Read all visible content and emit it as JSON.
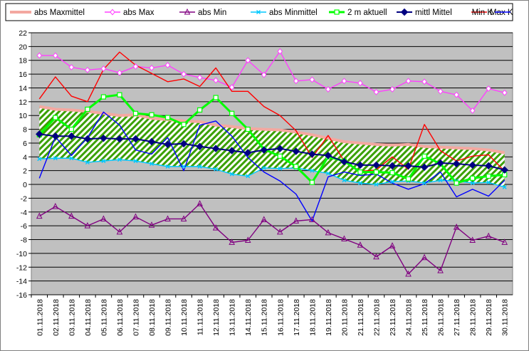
{
  "chart_data": {
    "type": "line",
    "categories": [
      "01.11.2018",
      "02.11.2018",
      "03.11.2018",
      "04.11.2018",
      "05.11.2018",
      "06.11.2018",
      "07.11.2018",
      "08.11.2018",
      "09.11.2018",
      "10.11.2018",
      "11.11.2018",
      "12.11.2018",
      "13.11.2018",
      "14.11.2018",
      "15.11.2018",
      "16.11.2018",
      "17.11.2018",
      "18.11.2018",
      "19.11.2018",
      "20.11.2018",
      "21.11.2018",
      "22.11.2018",
      "23.11.2018",
      "24.11.2018",
      "25.11.2018",
      "26.11.2018",
      "27.11.2018",
      "28.11.2018",
      "29.11.2018",
      "30.11.2018"
    ],
    "ylim": [
      -16,
      22
    ],
    "yticks": [
      22,
      20,
      18,
      16,
      14,
      12,
      10,
      8,
      6,
      4,
      2,
      0,
      -2,
      -4,
      -6,
      -8,
      -10,
      -12,
      -14,
      -16
    ],
    "grid": true,
    "legend_position": "top",
    "band": {
      "upper_series": "abs Maxmittel",
      "lower_series": "abs Minmittel",
      "pattern": "green-diagonal-hatch"
    },
    "series": [
      {
        "name": "abs Maxmittel",
        "color": "#f4a8a0",
        "marker": "none",
        "width": 4,
        "values": [
          11.3,
          10.9,
          10.8,
          10.6,
          10.3,
          10.0,
          10.1,
          9.6,
          9.4,
          9.2,
          9.1,
          8.6,
          8.4,
          8.1,
          8.0,
          7.9,
          7.6,
          7.2,
          6.7,
          6.2,
          6.0,
          5.8,
          5.7,
          5.8,
          5.5,
          5.4,
          5.3,
          5.2,
          5.0,
          4.6
        ]
      },
      {
        "name": "abs Max",
        "color": "#ff40ff",
        "marker": "diamond-open",
        "values": [
          18.7,
          18.7,
          17.0,
          16.6,
          16.8,
          16.2,
          17.1,
          16.9,
          17.3,
          16.0,
          15.5,
          15.1,
          14.1,
          18.0,
          15.9,
          19.3,
          15.0,
          15.2,
          13.8,
          15.0,
          14.7,
          13.4,
          13.8,
          15.0,
          14.9,
          13.5,
          13.0,
          10.7,
          13.9,
          13.3
        ]
      },
      {
        "name": "abs Min",
        "color": "#800080",
        "marker": "triangle-open",
        "values": [
          -4.6,
          -3.2,
          -4.6,
          -6.0,
          -5.0,
          -6.9,
          -4.7,
          -5.9,
          -5.0,
          -5.0,
          -2.8,
          -6.3,
          -8.4,
          -8.1,
          -5.1,
          -6.9,
          -5.3,
          -5.1,
          -7.0,
          -7.9,
          -8.8,
          -10.5,
          -8.9,
          -13.0,
          -10.6,
          -12.5,
          -6.2,
          -8.1,
          -7.5,
          -8.4
        ]
      },
      {
        "name": "abs Minmittel",
        "color": "#00c8ff",
        "marker": "x-cross",
        "values": [
          3.7,
          3.8,
          3.8,
          3.2,
          3.4,
          3.6,
          3.4,
          3.0,
          2.6,
          2.6,
          2.6,
          2.2,
          1.5,
          1.2,
          2.4,
          2.3,
          2.4,
          2.0,
          1.6,
          0.6,
          0.2,
          0.0,
          0.4,
          0.5,
          0.2,
          0.6,
          0.5,
          0.2,
          0.3,
          -0.4
        ]
      },
      {
        "name": "2 m aktuell",
        "color": "#00ff00",
        "marker": "square-open",
        "width": 3,
        "values": [
          7.2,
          9.7,
          8.0,
          10.9,
          12.7,
          13.0,
          10.3,
          10.1,
          9.7,
          8.7,
          10.8,
          12.6,
          10.3,
          8.0,
          5.1,
          4.1,
          2.6,
          0.3,
          4.0,
          3.4,
          1.8,
          1.8,
          1.7,
          0.8,
          4.1,
          3.0,
          0.2,
          0.9,
          1.2,
          1.4
        ]
      },
      {
        "name": "mittl Mittel",
        "color": "#000080",
        "marker": "diamond-filled",
        "width": 2,
        "values": [
          7.3,
          7.0,
          7.0,
          6.6,
          6.7,
          6.6,
          6.6,
          6.2,
          5.8,
          5.9,
          5.5,
          5.2,
          4.9,
          4.6,
          5.0,
          5.2,
          4.8,
          4.4,
          4.2,
          3.3,
          2.8,
          2.8,
          2.7,
          2.7,
          2.5,
          3.1,
          3.0,
          2.8,
          2.7,
          2.1
        ]
      },
      {
        "name": "Max K",
        "color": "#ff0000",
        "marker": "none",
        "values": [
          12.4,
          15.6,
          12.8,
          12.0,
          16.7,
          19.2,
          17.3,
          16.1,
          14.9,
          15.3,
          14.2,
          16.9,
          13.5,
          13.5,
          11.3,
          10.0,
          7.8,
          3.9,
          7.1,
          3.4,
          1.9,
          2.1,
          4.0,
          2.2,
          8.7,
          4.9,
          3.4,
          4.1,
          4.3,
          1.9
        ]
      },
      {
        "name": "Min K",
        "color": "#0000ff",
        "marker": "none",
        "values": [
          0.9,
          6.9,
          4.2,
          6.8,
          10.5,
          8.6,
          5.0,
          4.4,
          6.8,
          2.0,
          8.6,
          9.2,
          7.0,
          3.9,
          1.8,
          0.5,
          -1.4,
          -5.3,
          1.1,
          1.8,
          1.3,
          1.5,
          0.2,
          -0.7,
          0.1,
          1.8,
          -1.8,
          -0.7,
          -1.7,
          0.6
        ]
      }
    ]
  }
}
